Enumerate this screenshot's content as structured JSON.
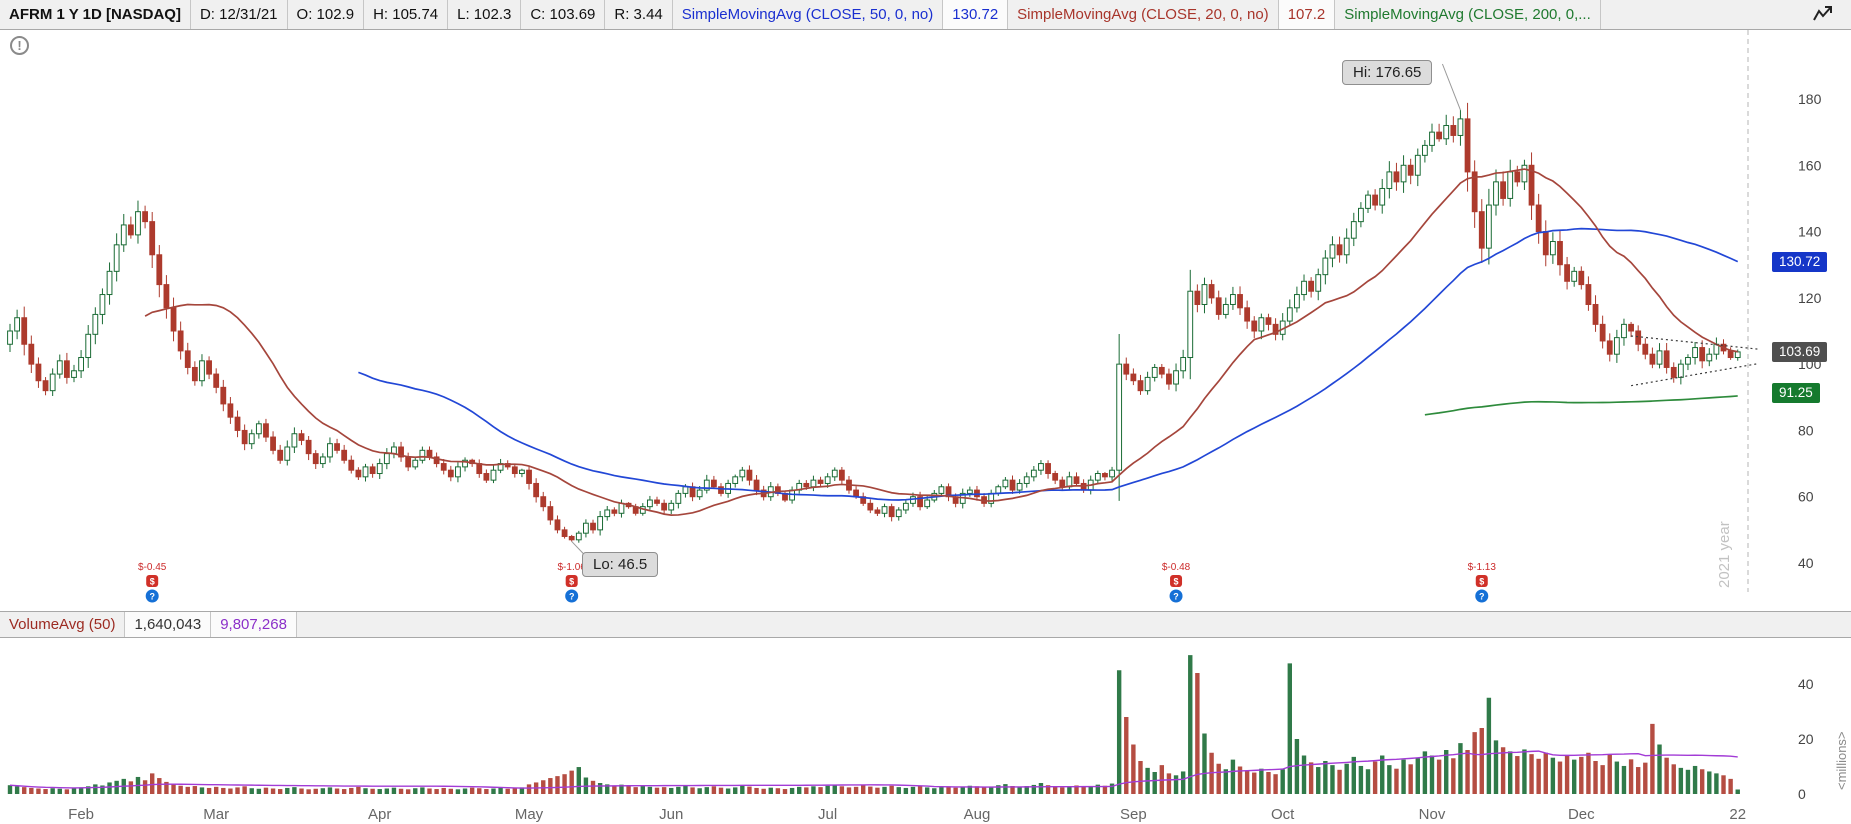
{
  "toolbar": {
    "symbol": "AFRM 1 Y 1D [NASDAQ]",
    "date": "D: 12/31/21",
    "open": "O: 102.9",
    "high": "H: 105.74",
    "low": "L: 102.3",
    "close": "C: 103.69",
    "range": "R: 3.44",
    "sma50_label": "SimpleMovingAvg (CLOSE, 50, 0, no)",
    "sma50_value": "130.72",
    "sma20_label": "SimpleMovingAvg (CLOSE, 20, 0, no)",
    "sma20_value": "107.2",
    "sma200_label": "SimpleMovingAvg (CLOSE, 200, 0,..."
  },
  "volume_header": {
    "label": "VolumeAvg (50)",
    "day_volume": "1,640,043",
    "avg_volume": "9,807,268"
  },
  "annotations": {
    "hi": "Hi: 176.65",
    "lo": "Lo: 46.5",
    "year_line": "2021 year",
    "millions": "<millions>",
    "info": "!"
  },
  "badges": [
    {
      "text": "130.72",
      "color": "#1536c8",
      "price": 130.72
    },
    {
      "text": "103.69",
      "color": "#4f4f4f",
      "price": 103.69
    },
    {
      "text": "91.25",
      "color": "#157a2e",
      "price": 91.25
    }
  ],
  "chart_data": {
    "type": "candlestick",
    "symbol": "AFRM",
    "timeframe": "1 Y 1D",
    "exchange": "NASDAQ",
    "last_ohlc": {
      "date": "12/31/21",
      "open": 102.9,
      "high": 105.74,
      "low": 102.3,
      "close": 103.69,
      "range": 3.44
    },
    "price_axis_ticks": [
      180,
      160,
      140,
      120,
      100,
      80,
      60,
      40
    ],
    "volume_axis_ticks": [
      40,
      20,
      0
    ],
    "first_open": 106,
    "closes": [
      110,
      114,
      106,
      100,
      95,
      92,
      97,
      101,
      96,
      98,
      102,
      109,
      115,
      121,
      128,
      136,
      142,
      139,
      146,
      143,
      133,
      124,
      117,
      110,
      104,
      99,
      95,
      101,
      97,
      93,
      88,
      84,
      80,
      76,
      79,
      82,
      78,
      74,
      71,
      75,
      79,
      77,
      73,
      70,
      72,
      76,
      74,
      71,
      68,
      66,
      69,
      67,
      70,
      73,
      75,
      72,
      69,
      71,
      74,
      72,
      70,
      68,
      66,
      69,
      71,
      70,
      67,
      65,
      68,
      70,
      69,
      67,
      68,
      64,
      60,
      57,
      53,
      50,
      48,
      47,
      49,
      52,
      50,
      54,
      56,
      55,
      58,
      57,
      55,
      57,
      59,
      58,
      56,
      58,
      61,
      63,
      60,
      62,
      65,
      63,
      61,
      64,
      66,
      68,
      65,
      62,
      60,
      63,
      61,
      59,
      62,
      64,
      63,
      65,
      64,
      66,
      68,
      65,
      62,
      60,
      58,
      56,
      55,
      57,
      54,
      56,
      58,
      60,
      57,
      59,
      61,
      63,
      60,
      58,
      61,
      62,
      60,
      58,
      61,
      63,
      65,
      62,
      64,
      66,
      68,
      70,
      67,
      65,
      63,
      66,
      64,
      62,
      65,
      67,
      66,
      68,
      100,
      97,
      95,
      92,
      96,
      99,
      97,
      94,
      98,
      102,
      122,
      118,
      124,
      120,
      115,
      118,
      121,
      117,
      113,
      110,
      114,
      112,
      109,
      113,
      117,
      121,
      125,
      122,
      127,
      132,
      136,
      133,
      138,
      143,
      147,
      151,
      148,
      153,
      158,
      155,
      160,
      157,
      163,
      166,
      170,
      168,
      172,
      169,
      174,
      158,
      146,
      135,
      148,
      155,
      150,
      158,
      155,
      160,
      148,
      140,
      133,
      137,
      130,
      125,
      128,
      124,
      118,
      112,
      107,
      103,
      108,
      112,
      110,
      106,
      103,
      100,
      104,
      99,
      96,
      100,
      102,
      105,
      101,
      103,
      106,
      104,
      102,
      103.69
    ],
    "volumes_millions": [
      3.2,
      2.8,
      2.5,
      2.2,
      2.0,
      1.8,
      2.1,
      1.9,
      1.7,
      2.0,
      2.4,
      2.8,
      3.5,
      3.1,
      4.2,
      4.8,
      5.5,
      4.6,
      6.2,
      5.0,
      7.5,
      5.8,
      4.4,
      3.6,
      3.0,
      2.6,
      2.9,
      2.4,
      2.2,
      2.6,
      2.2,
      2.0,
      2.4,
      2.8,
      2.1,
      1.9,
      2.3,
      2.0,
      1.8,
      2.2,
      2.5,
      2.0,
      1.7,
      1.9,
      2.1,
      2.4,
      2.0,
      1.8,
      2.2,
      2.6,
      2.1,
      1.9,
      1.8,
      2.0,
      2.3,
      1.9,
      1.7,
      2.1,
      2.4,
      2.0,
      1.8,
      2.2,
      1.9,
      1.7,
      2.0,
      2.3,
      2.1,
      1.8,
      2.0,
      2.2,
      1.9,
      2.1,
      2.4,
      3.5,
      4.2,
      5.0,
      5.8,
      6.5,
      7.2,
      8.5,
      9.8,
      6.0,
      4.8,
      4.0,
      3.5,
      3.0,
      3.4,
      2.8,
      2.5,
      2.9,
      2.6,
      2.3,
      2.5,
      2.2,
      2.6,
      3.0,
      2.4,
      2.1,
      2.5,
      2.8,
      2.3,
      2.0,
      2.4,
      3.2,
      2.7,
      2.2,
      1.9,
      2.3,
      2.1,
      1.8,
      2.2,
      2.6,
      2.4,
      2.8,
      2.5,
      3.0,
      3.4,
      2.8,
      2.4,
      2.6,
      3.1,
      2.7,
      2.3,
      2.6,
      3.0,
      2.5,
      2.2,
      2.6,
      2.9,
      2.4,
      2.1,
      2.5,
      2.8,
      2.3,
      2.6,
      3.0,
      2.8,
      2.4,
      2.7,
      3.2,
      3.6,
      2.9,
      2.5,
      2.9,
      3.3,
      4.0,
      3.2,
      2.7,
      2.4,
      2.8,
      3.1,
      2.6,
      2.9,
      3.4,
      3.0,
      3.8,
      45.0,
      28.0,
      18.0,
      12.0,
      9.5,
      8.0,
      10.5,
      7.5,
      6.8,
      8.2,
      50.5,
      44.0,
      22.0,
      15.0,
      11.0,
      9.0,
      12.5,
      10.0,
      8.5,
      7.8,
      9.2,
      8.0,
      7.2,
      9.0,
      47.5,
      20.0,
      14.0,
      11.5,
      9.8,
      12.0,
      10.5,
      8.8,
      11.0,
      13.5,
      10.2,
      9.0,
      11.8,
      14.0,
      10.5,
      9.2,
      12.5,
      10.8,
      13.0,
      15.5,
      14.0,
      12.5,
      16.0,
      13.0,
      18.5,
      16.0,
      22.5,
      24.0,
      35.0,
      19.5,
      17.0,
      15.5,
      13.8,
      16.2,
      14.5,
      12.8,
      15.0,
      13.2,
      11.8,
      14.0,
      12.5,
      13.5,
      15.0,
      12.0,
      10.5,
      14.2,
      11.8,
      10.2,
      12.6,
      9.8,
      11.4,
      25.5,
      18.0,
      13.2,
      10.8,
      9.5,
      8.8,
      10.2,
      9.0,
      8.2,
      7.5,
      6.8,
      5.5,
      1.64
    ],
    "hi_marker": {
      "day": 204,
      "value": 176.65
    },
    "lo_marker": {
      "day": 79,
      "value": 46.5
    },
    "months": [
      {
        "label": "Feb",
        "day": 10
      },
      {
        "label": "Mar",
        "day": 29
      },
      {
        "label": "Apr",
        "day": 52
      },
      {
        "label": "May",
        "day": 73
      },
      {
        "label": "Jun",
        "day": 93
      },
      {
        "label": "Jul",
        "day": 115
      },
      {
        "label": "Aug",
        "day": 136
      },
      {
        "label": "Sep",
        "day": 158
      },
      {
        "label": "Oct",
        "day": 179
      },
      {
        "label": "Nov",
        "day": 200
      },
      {
        "label": "Dec",
        "day": 221
      },
      {
        "label": "22",
        "day": 243
      }
    ],
    "sma": [
      {
        "period": 50,
        "color": "#2247d6"
      },
      {
        "period": 20,
        "color": "#a5463c"
      },
      {
        "period": 200,
        "color": "#2e8b3c"
      }
    ],
    "volume_avg_period": 50,
    "volume_avg_color": "#a23bd6",
    "trendlines": [
      {
        "d1": 228,
        "p1": 108.5,
        "d2": 246,
        "p2": 104.5
      },
      {
        "d1": 228,
        "p1": 93.5,
        "d2": 246,
        "p2": 100.2
      }
    ],
    "earnings_markers": [
      {
        "day": 20,
        "label": "$-0.45"
      },
      {
        "day": 79,
        "label": "$-1.06"
      },
      {
        "day": 164,
        "label": "$-0.48"
      },
      {
        "day": 207,
        "label": "$-1.13"
      }
    ],
    "colors": {
      "up": "#1a6b35",
      "down": "#ad3a2d"
    }
  }
}
